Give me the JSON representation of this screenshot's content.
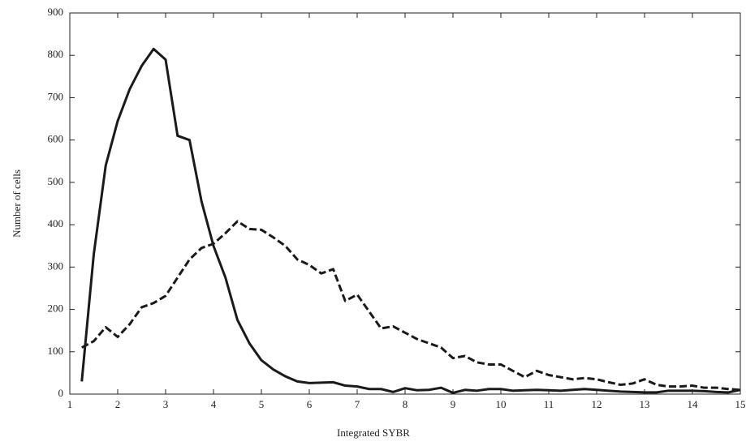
{
  "chart_data": {
    "type": "line",
    "x_label": "Integrated SYBR",
    "y_label": "Number of cells",
    "x": [
      1.25,
      1.5,
      1.75,
      2.0,
      2.25,
      2.5,
      2.75,
      3.0,
      3.25,
      3.5,
      3.75,
      4.0,
      4.25,
      4.5,
      4.75,
      5.0,
      5.25,
      5.5,
      5.75,
      6.0,
      6.25,
      6.5,
      6.75,
      7.0,
      7.25,
      7.5,
      7.75,
      8.0,
      8.25,
      8.5,
      8.75,
      9.0,
      9.25,
      9.5,
      9.75,
      10.0,
      10.25,
      10.5,
      10.75,
      11.0,
      11.25,
      11.5,
      11.75,
      12.0,
      12.25,
      12.5,
      12.75,
      13.0,
      13.25,
      13.5,
      13.75,
      14.0,
      14.25,
      14.5,
      14.75,
      15.0
    ],
    "series": [
      {
        "color": "#1a1a1a",
        "dashed": false,
        "values": [
          30,
          330,
          540,
          645,
          720,
          775,
          815,
          790,
          610,
          600,
          455,
          350,
          275,
          175,
          120,
          80,
          58,
          42,
          30,
          26,
          27,
          28,
          20,
          18,
          12,
          12,
          5,
          14,
          9,
          10,
          15,
          3,
          10,
          8,
          12,
          12,
          8,
          9,
          10,
          9,
          8,
          10,
          12,
          10,
          8,
          6,
          5,
          4,
          4,
          8,
          8,
          8,
          7,
          5,
          4,
          10
        ]
      },
      {
        "color": "#1a1a1a",
        "dashed": true,
        "values": [
          110,
          125,
          158,
          135,
          165,
          205,
          215,
          232,
          275,
          318,
          345,
          355,
          380,
          408,
          390,
          388,
          370,
          350,
          318,
          305,
          285,
          295,
          220,
          235,
          195,
          155,
          160,
          145,
          130,
          120,
          110,
          85,
          90,
          75,
          70,
          70,
          55,
          40,
          55,
          45,
          40,
          35,
          38,
          35,
          28,
          22,
          25,
          35,
          22,
          18,
          18,
          20,
          15,
          15,
          12,
          10
        ]
      }
    ],
    "xlim": [
      1,
      15
    ],
    "xticks": [
      1,
      2,
      3,
      4,
      5,
      6,
      7,
      8,
      9,
      10,
      11,
      12,
      13,
      14,
      15
    ],
    "ylim": [
      0,
      900
    ],
    "yticks": [
      0,
      100,
      200,
      300,
      400,
      500,
      600,
      700,
      800,
      900
    ],
    "grid": false
  }
}
